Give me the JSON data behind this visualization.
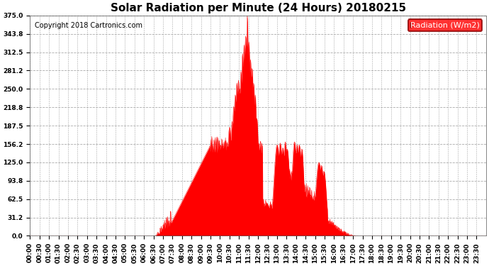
{
  "title": "Solar Radiation per Minute (24 Hours) 20180215",
  "copyright_text": "Copyright 2018 Cartronics.com",
  "legend_label": "Radiation (W/m2)",
  "y_ticks": [
    0.0,
    31.2,
    62.5,
    93.8,
    125.0,
    156.2,
    187.5,
    218.8,
    250.0,
    281.2,
    312.5,
    343.8,
    375.0
  ],
  "y_min": 0.0,
  "y_max": 375.0,
  "fill_color": "#ff0000",
  "line_color": "#ff0000",
  "background_color": "#ffffff",
  "title_fontsize": 11,
  "copyright_fontsize": 7,
  "axis_tick_fontsize": 6.5,
  "legend_fontsize": 8
}
